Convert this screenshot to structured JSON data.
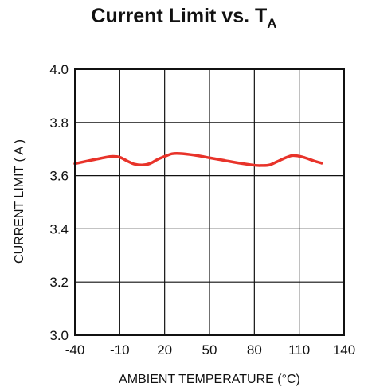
{
  "chart_data": {
    "type": "line",
    "title": "Current Limit vs. T",
    "title_subscript": "A",
    "xlabel": "AMBIENT TEMPERATURE (°C)",
    "ylabel": "CURRENT LIMIT ( A )",
    "xlim": [
      -40,
      140
    ],
    "ylim": [
      3.0,
      4.0
    ],
    "xticks": [
      -40,
      -10,
      20,
      50,
      80,
      110,
      140
    ],
    "yticks": [
      "3.0",
      "3.2",
      "3.4",
      "3.6",
      "3.8",
      "4.0"
    ],
    "grid": true,
    "line_color": "#e8332a",
    "series": [
      {
        "x": [
          -40,
          -30,
          -20,
          -15,
          -10,
          -5,
          0,
          5,
          10,
          15,
          20,
          25,
          30,
          40,
          50,
          60,
          70,
          80,
          85,
          90,
          95,
          100,
          105,
          110,
          115,
          120,
          125
        ],
        "y": [
          3.645,
          3.657,
          3.668,
          3.672,
          3.669,
          3.655,
          3.643,
          3.64,
          3.645,
          3.66,
          3.672,
          3.682,
          3.683,
          3.677,
          3.667,
          3.657,
          3.647,
          3.639,
          3.638,
          3.64,
          3.652,
          3.665,
          3.675,
          3.673,
          3.665,
          3.655,
          3.647
        ]
      }
    ]
  }
}
